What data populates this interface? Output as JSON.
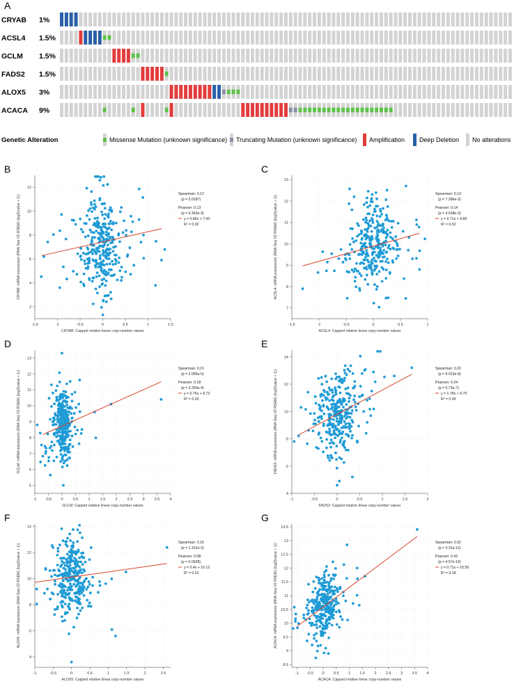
{
  "colors": {
    "missense": "#5fc24a",
    "truncating": "#8a8fa6",
    "amplification": "#e23c3c",
    "deletion": "#2a5fa8",
    "no_alteration": "#d3d3d3",
    "point": "#1f9bd6",
    "fit": "#d9432b"
  },
  "oncoprint": {
    "panel_label": "A",
    "legend_title": "Genetic Alteration",
    "legend": [
      "Missense Mutation (unknown significance)",
      "Truncating Mutation (unknown significance)",
      "Amplification",
      "Deep Deletion",
      "No alterations"
    ],
    "n_samples": 95,
    "genes": [
      {
        "name": "CRYAB",
        "pct": "1%",
        "cells": {
          "deletion": [
            0,
            1,
            2,
            3
          ],
          "amplification": []
        }
      },
      {
        "name": "ACSL4",
        "pct": "1.5%",
        "cells": {
          "amplification": [
            4
          ],
          "deletion": [
            5,
            6,
            7,
            8
          ],
          "missense": [
            9,
            10
          ]
        }
      },
      {
        "name": "GCLM",
        "pct": "1.5%",
        "cells": {
          "amplification": [
            11,
            12,
            13,
            14
          ],
          "missense": [
            15,
            16
          ]
        }
      },
      {
        "name": "FADS2",
        "pct": "1.5%",
        "cells": {
          "amplification": [
            17,
            18,
            19,
            20,
            21
          ],
          "missense": [
            22
          ]
        }
      },
      {
        "name": "ALOX5",
        "pct": "3%",
        "cells": {
          "amplification": [
            23,
            24,
            25,
            26,
            27,
            28,
            29,
            30,
            31
          ],
          "deletion": [
            32,
            33
          ],
          "truncating": [
            34
          ],
          "missense": [
            35,
            36,
            37
          ]
        }
      },
      {
        "name": "ACACA",
        "pct": "9%",
        "cells": {
          "missense": [
            9,
            15,
            22
          ],
          "amplification": [
            17,
            23,
            38,
            39,
            40,
            41,
            42,
            43,
            44,
            45,
            46,
            47
          ],
          "truncating": [
            48,
            49
          ],
          "missense2": [
            50,
            51,
            52,
            53,
            54,
            55,
            56,
            57,
            58,
            59,
            60,
            61,
            62,
            63,
            64,
            65,
            66,
            67,
            68,
            69
          ]
        }
      }
    ]
  },
  "chart_data": [
    {
      "panel": "B",
      "type": "scatter",
      "xlabel": "CRYAB: Capped relative linear copy-number values",
      "ylabel": "CRYAB: mRNA expression (RNA Seq V2 RSEM) (log2(value + 1))",
      "xlim": [
        -1.5,
        1.5
      ],
      "ylim": [
        1,
        13
      ],
      "xticks": [
        "-1.5",
        "-1",
        "-0.5",
        "0",
        "0.5",
        "1",
        "1.5"
      ],
      "yticks": [
        "2",
        "4",
        "6",
        "8",
        "10",
        "12"
      ],
      "xtick_values": [
        -1.5,
        -1,
        -0.5,
        0,
        0.5,
        1,
        1.5
      ],
      "ytick_values": [
        2,
        4,
        6,
        8,
        10,
        12
      ],
      "fit": {
        "slope": 0.85,
        "intercept": 7.43,
        "xrange": [
          -1.35,
          1.3
        ]
      },
      "stats": [
        "Spearman: 0.12",
        "(p = 0.0187)",
        "Pearson: 0.13",
        "(p = 9.363e-3)",
        "y = 0.85x + 7.43",
        "R² = 0.02"
      ],
      "gen": {
        "n": 330,
        "cx": 0.0,
        "sx": 0.28,
        "cy": 7.4,
        "sy": 2.2,
        "seed": 11
      },
      "outliers": [
        [
          -1.3,
          6.2
        ],
        [
          1.3,
          5.9
        ],
        [
          1.37,
          6.8
        ],
        [
          0.9,
          8.0
        ],
        [
          -0.95,
          3.6
        ]
      ]
    },
    {
      "panel": "C",
      "type": "scatter",
      "xlabel": "ACSL4: Capped relative linear copy-number values",
      "ylabel": "ACSL4: mRNA expression (RNA Seq V2 RSEM) (log2(value + 1))",
      "xlim": [
        -1.5,
        1.0
      ],
      "ylim": [
        6.5,
        13.2
      ],
      "xticks": [
        "-1.5",
        "-1",
        "-0.5",
        "0",
        "0.5",
        "1"
      ],
      "yticks": [
        "7",
        "8",
        "9",
        "10",
        "11",
        "12",
        "13"
      ],
      "xtick_values": [
        -1.5,
        -1,
        -0.5,
        0,
        0.5,
        1
      ],
      "ytick_values": [
        7,
        8,
        9,
        10,
        11,
        12,
        13
      ],
      "fit": {
        "slope": 0.71,
        "intercept": 9.89,
        "xrange": [
          -1.3,
          0.85
        ]
      },
      "stats": [
        "Spearman: 0.13",
        "(p = 7.286e-3)",
        "Pearson: 0.14",
        "(p = 4.538e-3)",
        "y = 0.71x + 9.89",
        "R² = 0.02"
      ],
      "gen": {
        "n": 330,
        "cx": 0.0,
        "sx": 0.25,
        "cy": 9.9,
        "sy": 1.0,
        "seed": 23
      },
      "outliers": [
        [
          -1.3,
          7.9
        ],
        [
          0.85,
          8.8
        ],
        [
          0.6,
          12.7
        ],
        [
          0.8,
          10.9
        ]
      ]
    },
    {
      "panel": "D",
      "type": "scatter",
      "xlabel": "GCLM: Capped relative linear copy-number values",
      "ylabel": "GCLM: mRNA expression (RNA Seq V2 RSEM) (log2(value + 1))",
      "xlim": [
        -1.0,
        4.0
      ],
      "ylim": [
        4.5,
        13.5
      ],
      "xticks": [
        "-1",
        "-0.5",
        "0",
        "0.5",
        "1",
        "1.5",
        "2",
        "2.5",
        "3",
        "3.5",
        "4"
      ],
      "yticks": [
        "5",
        "6",
        "7",
        "8",
        "9",
        "10",
        "11",
        "12",
        "13"
      ],
      "xtick_values": [
        -1,
        -0.5,
        0,
        0.5,
        1,
        1.5,
        2,
        2.5,
        3,
        3.5,
        4
      ],
      "ytick_values": [
        5,
        6,
        7,
        8,
        9,
        10,
        11,
        12,
        13
      ],
      "fit": {
        "slope": 0.76,
        "intercept": 8.73,
        "xrange": [
          -0.7,
          3.65
        ]
      },
      "stats": [
        "Spearman: 0.21",
        "(p = 2.055e-5)",
        "Pearson: 0.18",
        "(p = 3.260e-4)",
        "y = 0.76x + 8.73",
        "R² = 0.03"
      ],
      "gen": {
        "n": 330,
        "cx": 0.05,
        "sx": 0.22,
        "cy": 8.8,
        "sy": 1.1,
        "seed": 37
      },
      "outliers": [
        [
          3.65,
          10.4
        ],
        [
          1.8,
          10.1
        ],
        [
          1.2,
          9.6
        ],
        [
          0.0,
          13.3
        ],
        [
          0.05,
          5.0
        ]
      ]
    },
    {
      "panel": "E",
      "type": "scatter",
      "xlabel": "FADS2: Capped relative linear copy-number values",
      "ylabel": "FADS2: mRNA expression (RNA Seq V2 RSEM) (log2(value + 1))",
      "xlim": [
        -1.0,
        2.0
      ],
      "ylim": [
        4,
        14.5
      ],
      "xticks": [
        "-1",
        "-0.5",
        "0",
        "0.5",
        "1",
        "1.5",
        "2"
      ],
      "yticks": [
        "4",
        "6",
        "8",
        "10",
        "12",
        "14"
      ],
      "xtick_values": [
        -1,
        -0.5,
        0,
        0.5,
        1,
        1.5,
        2
      ],
      "ytick_values": [
        4,
        6,
        8,
        10,
        12,
        14
      ],
      "fit": {
        "slope": 1.78,
        "intercept": 9.79,
        "xrange": [
          -0.85,
          1.65
        ]
      },
      "stats": [
        "Spearman: 0.22",
        "(p = 9.013e-8)",
        "Pearson: 0.24",
        "(p = 5.73e-7)",
        "y = 1.78x + 9.79",
        "R² = 0.06"
      ],
      "gen": {
        "n": 330,
        "cx": 0.0,
        "sx": 0.28,
        "cy": 9.8,
        "sy": 1.7,
        "seed": 41
      },
      "outliers": [
        [
          1.65,
          13.2
        ],
        [
          -0.85,
          8.2
        ],
        [
          0.0,
          4.6
        ],
        [
          0.05,
          4.9
        ]
      ]
    },
    {
      "panel": "F",
      "type": "scatter",
      "xlabel": "ALOX5: Capped relative linear copy-number values",
      "ylabel": "ALOX5: mRNA expression (RNA Seq V2 RSEM) (log2(value + 1))",
      "xlim": [
        -1.0,
        2.7
      ],
      "ylim": [
        3.2,
        14.2
      ],
      "xticks": [
        "-1",
        "-0.5",
        "0",
        "0.5",
        "1",
        "1.5",
        "2",
        "2.5"
      ],
      "yticks": [
        "4",
        "6",
        "8",
        "10",
        "12",
        "14"
      ],
      "xtick_values": [
        -1,
        -0.5,
        0,
        0.5,
        1,
        1.5,
        2,
        2.5
      ],
      "ytick_values": [
        4,
        6,
        8,
        10,
        12,
        14
      ],
      "fit": {
        "slope": 0.4,
        "intercept": 10.12,
        "xrange": [
          -1.0,
          2.6
        ]
      },
      "stats": [
        "Spearman: 0.16",
        "(p = 1.151e-3)",
        "Pearson: 0.08",
        "(p = 0.0938)",
        "y = 0.4x + 10.12",
        "R² = 0.01"
      ],
      "gen": {
        "n": 330,
        "cx": 0.0,
        "sx": 0.3,
        "cy": 10.0,
        "sy": 1.6,
        "seed": 53
      },
      "outliers": [
        [
          2.6,
          12.4
        ],
        [
          0.0,
          3.6
        ],
        [
          1.2,
          5.6
        ],
        [
          1.1,
          6.1
        ]
      ]
    },
    {
      "panel": "G",
      "type": "scatter",
      "xlabel": "ACACA: Capped relative linear copy-number values",
      "ylabel": "ACACA: mRNA expression (RNA Seq V2 RSEM) (log2(value + 1))",
      "xlim": [
        -1.2,
        4.0
      ],
      "ylim": [
        8.4,
        13.6
      ],
      "xticks": [
        "-1",
        "-0.5",
        "0",
        "0.5",
        "1",
        "1.5",
        "2",
        "2.5",
        "3",
        "3.5",
        "4"
      ],
      "yticks": [
        "8.5",
        "9",
        "9.5",
        "10",
        "10.5",
        "11",
        "11.5",
        "12",
        "12.5",
        "13",
        "13.5"
      ],
      "xtick_values": [
        -1,
        -0.5,
        0,
        0.5,
        1,
        1.5,
        2,
        2.5,
        3,
        3.5,
        4
      ],
      "ytick_values": [
        8.5,
        9,
        9.5,
        10,
        10.5,
        11,
        11.5,
        12,
        12.5,
        13,
        13.5
      ],
      "fit": {
        "slope": 0.71,
        "intercept": 10.59,
        "xrange": [
          -1.0,
          3.6
        ]
      },
      "stats": [
        "Spearman: 0.32",
        "(p = 3.31e-11)",
        "Pearson: 0.42",
        "(p = 4.57e-19)",
        "y = 0.71x + 10.59",
        "R² = 0.18"
      ],
      "gen": {
        "n": 330,
        "cx": 0.05,
        "sx": 0.3,
        "cy": 10.6,
        "sy": 0.55,
        "seed": 67
      },
      "outliers": [
        [
          3.6,
          13.4
        ],
        [
          1.6,
          11.7
        ],
        [
          1.3,
          12.0
        ],
        [
          0.2,
          8.9
        ]
      ]
    }
  ]
}
